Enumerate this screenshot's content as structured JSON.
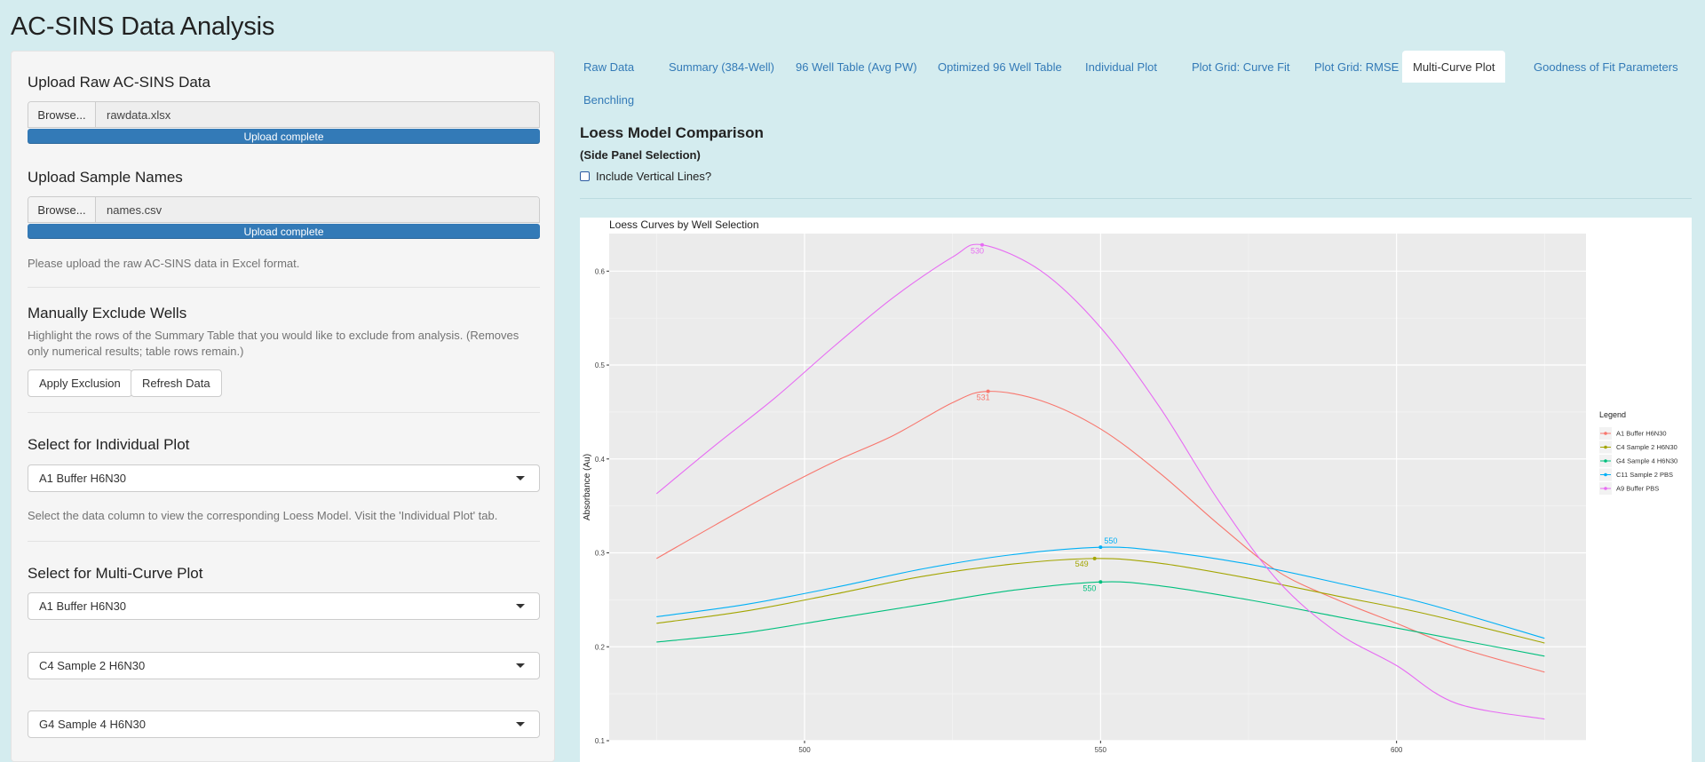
{
  "app": {
    "title": "AC-SINS Data Analysis"
  },
  "sidebar": {
    "upload_raw": {
      "title": "Upload Raw AC-SINS Data",
      "browse_label": "Browse...",
      "file_name": "rawdata.xlsx",
      "progress_label": "Upload complete",
      "progress_value": 1.0
    },
    "upload_names": {
      "title": "Upload Sample Names",
      "browse_label": "Browse...",
      "file_name": "names.csv",
      "progress_label": "Upload complete",
      "progress_value": 1.0
    },
    "upload_help": "Please upload the raw AC-SINS data in Excel format.",
    "exclude": {
      "title": "Manually Exclude Wells",
      "help": "Highlight the rows of the Summary Table that you would like to exclude from analysis. (Removes only numerical results; table rows remain.)",
      "apply_label": "Apply Exclusion",
      "refresh_label": "Refresh Data"
    },
    "individual": {
      "title": "Select for Individual Plot",
      "selected": "A1 Buffer H6N30",
      "help": "Select the data column to view the corresponding Loess Model. Visit the 'Individual Plot' tab."
    },
    "multi": {
      "title": "Select for Multi-Curve Plot",
      "selects": [
        "A1 Buffer H6N30",
        "C4 Sample 2 H6N30",
        "G4 Sample 4 H6N30"
      ]
    }
  },
  "tabs": [
    {
      "label": "Raw Data",
      "active": false
    },
    {
      "label": "Summary (384-Well)",
      "active": false
    },
    {
      "label": "96 Well Table (Avg PW)",
      "active": false
    },
    {
      "label": "Optimized 96 Well Table",
      "active": false
    },
    {
      "label": "Individual Plot",
      "active": false
    },
    {
      "label": "Plot Grid: Curve Fit",
      "active": false
    },
    {
      "label": "Plot Grid: RMSE",
      "active": false
    },
    {
      "label": "Multi-Curve Plot",
      "active": true
    },
    {
      "label": "Goodness of Fit Parameters",
      "active": false
    },
    {
      "label": "Benchling",
      "active": false
    }
  ],
  "content": {
    "title": "Loess Model Comparison",
    "subtitle": "(Side Panel Selection)",
    "checkbox_label": "Include Vertical Lines?",
    "checkbox_checked": false
  },
  "chart_data": {
    "type": "line",
    "title": "Loess Curves by Well Selection",
    "xlabel": "",
    "ylabel": "Absorbance (Au)",
    "xlim": [
      467,
      632
    ],
    "ylim": [
      0.1,
      0.64
    ],
    "x_ticks": [
      500,
      550,
      600
    ],
    "y_ticks": [
      0.1,
      0.2,
      0.3,
      0.4,
      0.5,
      0.6
    ],
    "grid": true,
    "legend": {
      "title": "Legend",
      "position": "right"
    },
    "series": [
      {
        "name": "A1 Buffer H6N30",
        "color": "#F8766D",
        "x": [
          475,
          485,
          495,
          505,
          515,
          525,
          531,
          540,
          550,
          560,
          570,
          580,
          590,
          600,
          610,
          625
        ],
        "y": [
          0.294,
          0.33,
          0.365,
          0.397,
          0.425,
          0.46,
          0.472,
          0.462,
          0.432,
          0.385,
          0.33,
          0.28,
          0.25,
          0.225,
          0.2,
          0.173
        ],
        "peak": {
          "x": 531,
          "y": 0.472,
          "label": "531"
        }
      },
      {
        "name": "C4 Sample 2 H6N30",
        "color": "#A3A500",
        "x": [
          475,
          490,
          505,
          520,
          535,
          549,
          560,
          575,
          590,
          605,
          625
        ],
        "y": [
          0.225,
          0.238,
          0.256,
          0.275,
          0.288,
          0.294,
          0.289,
          0.273,
          0.254,
          0.235,
          0.204
        ],
        "peak": {
          "x": 549,
          "y": 0.294,
          "label": "549"
        }
      },
      {
        "name": "G4 Sample 4 H6N30",
        "color": "#00BF7D",
        "x": [
          475,
          490,
          505,
          520,
          535,
          550,
          560,
          575,
          590,
          605,
          625
        ],
        "y": [
          0.205,
          0.215,
          0.23,
          0.245,
          0.26,
          0.269,
          0.265,
          0.25,
          0.232,
          0.214,
          0.19
        ],
        "peak": {
          "x": 550,
          "y": 0.269,
          "label": "550"
        }
      },
      {
        "name": "C11 Sample 2 PBS",
        "color": "#00B0F6",
        "x": [
          475,
          490,
          505,
          520,
          535,
          550,
          560,
          575,
          590,
          605,
          625
        ],
        "y": [
          0.232,
          0.245,
          0.263,
          0.283,
          0.298,
          0.306,
          0.302,
          0.288,
          0.268,
          0.246,
          0.209
        ],
        "peak": {
          "x": 550,
          "y": 0.306,
          "label": "550"
        }
      },
      {
        "name": "A9 Buffer PBS",
        "color": "#E76BF3",
        "x": [
          475,
          485,
          495,
          505,
          515,
          525,
          530,
          540,
          550,
          560,
          570,
          580,
          590,
          600,
          610,
          625
        ],
        "y": [
          0.363,
          0.415,
          0.465,
          0.52,
          0.572,
          0.615,
          0.628,
          0.6,
          0.54,
          0.455,
          0.355,
          0.27,
          0.215,
          0.18,
          0.14,
          0.123
        ],
        "peak": {
          "x": 530,
          "y": 0.628,
          "label": "530"
        }
      }
    ]
  }
}
